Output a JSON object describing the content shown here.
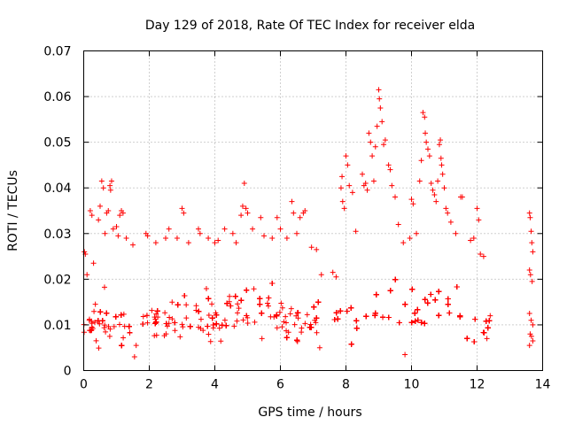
{
  "chart_data": {
    "type": "scatter",
    "title": "Day 129 of 2018, Rate Of TEC Index for receiver elda",
    "xlabel": "GPS time / hours",
    "ylabel": "ROTI / TECUs",
    "xlim": [
      0,
      14
    ],
    "ylim": [
      0,
      0.07
    ],
    "x_ticks": [
      0,
      2,
      4,
      6,
      8,
      10,
      12,
      14
    ],
    "x_tick_labels": [
      "0",
      "2",
      "4",
      "6",
      "8",
      "10",
      "12",
      "14"
    ],
    "y_ticks": [
      0,
      0.01,
      0.02,
      0.03,
      0.04,
      0.05,
      0.06,
      0.07
    ],
    "y_tick_labels": [
      "0",
      "0.01",
      "0.02",
      "0.03",
      "0.04",
      "0.05",
      "0.06",
      "0.07"
    ],
    "grid": true,
    "marker": "+",
    "color": "#ff0000",
    "series": [
      {
        "name": "ROTI",
        "points": [
          [
            0.02,
            0.026
          ],
          [
            0.05,
            0.0255
          ],
          [
            0.1,
            0.021
          ],
          [
            0.2,
            0.035
          ],
          [
            0.25,
            0.034
          ],
          [
            0.3,
            0.0235
          ],
          [
            0.45,
            0.033
          ],
          [
            0.5,
            0.036
          ],
          [
            0.55,
            0.0415
          ],
          [
            0.6,
            0.04
          ],
          [
            0.65,
            0.03
          ],
          [
            0.7,
            0.0345
          ],
          [
            0.75,
            0.035
          ],
          [
            0.8,
            0.0405
          ],
          [
            0.82,
            0.0395
          ],
          [
            0.85,
            0.0415
          ],
          [
            0.9,
            0.031
          ],
          [
            1.0,
            0.0315
          ],
          [
            1.05,
            0.0295
          ],
          [
            1.1,
            0.034
          ],
          [
            1.15,
            0.035
          ],
          [
            1.2,
            0.0345
          ],
          [
            1.3,
            0.029
          ],
          [
            1.5,
            0.0275
          ],
          [
            1.55,
            0.003
          ],
          [
            1.6,
            0.0055
          ],
          [
            1.9,
            0.03
          ],
          [
            1.95,
            0.0295
          ],
          [
            2.2,
            0.028
          ],
          [
            2.5,
            0.029
          ],
          [
            2.6,
            0.031
          ],
          [
            2.85,
            0.029
          ],
          [
            3.0,
            0.0355
          ],
          [
            3.05,
            0.0345
          ],
          [
            3.2,
            0.028
          ],
          [
            3.5,
            0.031
          ],
          [
            3.55,
            0.03
          ],
          [
            3.8,
            0.029
          ],
          [
            4.0,
            0.028
          ],
          [
            4.1,
            0.0285
          ],
          [
            4.3,
            0.031
          ],
          [
            4.55,
            0.03
          ],
          [
            4.65,
            0.028
          ],
          [
            4.8,
            0.034
          ],
          [
            4.85,
            0.036
          ],
          [
            4.9,
            0.041
          ],
          [
            4.95,
            0.0355
          ],
          [
            5.0,
            0.0345
          ],
          [
            5.15,
            0.031
          ],
          [
            5.4,
            0.0335
          ],
          [
            5.5,
            0.0295
          ],
          [
            5.75,
            0.029
          ],
          [
            5.9,
            0.0335
          ],
          [
            6.0,
            0.031
          ],
          [
            6.2,
            0.029
          ],
          [
            6.35,
            0.037
          ],
          [
            6.4,
            0.0345
          ],
          [
            6.5,
            0.03
          ],
          [
            6.6,
            0.0335
          ],
          [
            6.7,
            0.0345
          ],
          [
            6.75,
            0.035
          ],
          [
            6.95,
            0.027
          ],
          [
            7.1,
            0.0265
          ],
          [
            7.2,
            0.005
          ],
          [
            7.25,
            0.021
          ],
          [
            7.6,
            0.0215
          ],
          [
            7.7,
            0.0205
          ],
          [
            7.85,
            0.04
          ],
          [
            7.88,
            0.0425
          ],
          [
            7.9,
            0.037
          ],
          [
            7.95,
            0.0355
          ],
          [
            8.0,
            0.047
          ],
          [
            8.05,
            0.045
          ],
          [
            8.1,
            0.0405
          ],
          [
            8.2,
            0.039
          ],
          [
            8.3,
            0.0305
          ],
          [
            8.5,
            0.043
          ],
          [
            8.55,
            0.0405
          ],
          [
            8.6,
            0.041
          ],
          [
            8.65,
            0.0395
          ],
          [
            8.7,
            0.052
          ],
          [
            8.75,
            0.05
          ],
          [
            8.8,
            0.047
          ],
          [
            8.85,
            0.0415
          ],
          [
            8.9,
            0.049
          ],
          [
            8.95,
            0.0535
          ],
          [
            9.0,
            0.0615
          ],
          [
            9.02,
            0.0595
          ],
          [
            9.05,
            0.0575
          ],
          [
            9.1,
            0.0545
          ],
          [
            9.15,
            0.0495
          ],
          [
            9.2,
            0.0505
          ],
          [
            9.3,
            0.045
          ],
          [
            9.35,
            0.044
          ],
          [
            9.4,
            0.0405
          ],
          [
            9.5,
            0.038
          ],
          [
            9.6,
            0.032
          ],
          [
            9.75,
            0.028
          ],
          [
            9.8,
            0.0035
          ],
          [
            9.95,
            0.029
          ],
          [
            10.0,
            0.0375
          ],
          [
            10.05,
            0.0365
          ],
          [
            10.15,
            0.03
          ],
          [
            10.25,
            0.0415
          ],
          [
            10.3,
            0.046
          ],
          [
            10.35,
            0.0565
          ],
          [
            10.4,
            0.0555
          ],
          [
            10.42,
            0.052
          ],
          [
            10.45,
            0.05
          ],
          [
            10.5,
            0.0485
          ],
          [
            10.55,
            0.047
          ],
          [
            10.6,
            0.041
          ],
          [
            10.65,
            0.0395
          ],
          [
            10.7,
            0.0385
          ],
          [
            10.75,
            0.037
          ],
          [
            10.8,
            0.0415
          ],
          [
            10.85,
            0.0495
          ],
          [
            10.88,
            0.0505
          ],
          [
            10.9,
            0.0465
          ],
          [
            10.92,
            0.045
          ],
          [
            10.95,
            0.043
          ],
          [
            11.0,
            0.04
          ],
          [
            11.05,
            0.0355
          ],
          [
            11.1,
            0.0345
          ],
          [
            11.2,
            0.0325
          ],
          [
            11.35,
            0.03
          ],
          [
            11.5,
            0.038
          ],
          [
            11.55,
            0.038
          ],
          [
            11.8,
            0.0285
          ],
          [
            11.9,
            0.029
          ],
          [
            12.0,
            0.0355
          ],
          [
            12.05,
            0.033
          ],
          [
            12.1,
            0.0255
          ],
          [
            12.2,
            0.025
          ],
          [
            12.3,
            0.007
          ],
          [
            12.4,
            0.012
          ],
          [
            13.6,
            0.0345
          ],
          [
            13.62,
            0.0335
          ],
          [
            13.65,
            0.0305
          ],
          [
            13.67,
            0.028
          ],
          [
            13.7,
            0.026
          ],
          [
            13.6,
            0.022
          ],
          [
            13.63,
            0.021
          ],
          [
            13.68,
            0.0195
          ],
          [
            13.6,
            0.0125
          ],
          [
            13.65,
            0.011
          ],
          [
            13.7,
            0.01
          ],
          [
            13.62,
            0.008
          ],
          [
            13.66,
            0.0075
          ],
          [
            13.7,
            0.0065
          ],
          [
            13.6,
            0.0055
          ]
        ],
        "dense_bands": [
          {
            "x_range": [
              0.0,
              7.2
            ],
            "y_range": [
              0.004,
              0.027
            ],
            "density": "high",
            "hour_profile": [
              [
                0.0,
                0.015,
                0.01
              ],
              [
                0.5,
                0.022,
                0.01
              ],
              [
                1.0,
                0.02,
                0.01
              ],
              [
                2.0,
                0.018,
                0.01
              ],
              [
                3.0,
                0.02,
                0.011
              ],
              [
                4.0,
                0.022,
                0.011
              ],
              [
                5.0,
                0.025,
                0.012
              ],
              [
                6.0,
                0.021,
                0.011
              ],
              [
                7.0,
                0.02,
                0.011
              ]
            ]
          },
          {
            "x_range": [
              7.35,
              12.4
            ],
            "y_range": [
              0.004,
              0.03
            ],
            "density": "high",
            "hour_profile": [
              [
                7.4,
                0.017,
                0.01
              ],
              [
                8.0,
                0.022,
                0.011
              ],
              [
                9.0,
                0.026,
                0.012
              ],
              [
                10.0,
                0.025,
                0.012
              ],
              [
                11.0,
                0.024,
                0.012
              ],
              [
                12.0,
                0.016,
                0.01
              ],
              [
                12.4,
                0.013,
                0.009
              ]
            ]
          }
        ]
      }
    ]
  }
}
